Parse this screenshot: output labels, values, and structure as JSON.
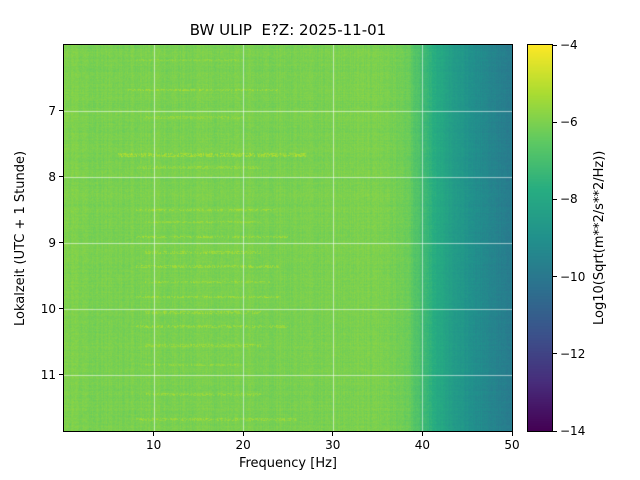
{
  "chart_data": {
    "type": "heatmap",
    "title": "BW ULIP  E?Z: 2025-11-01",
    "xlabel": "Frequency [Hz]",
    "ylabel": "Lokalzeit (UTC + 1 Stunde)",
    "x_range": [
      0,
      50
    ],
    "y_range": [
      6.0,
      11.85
    ],
    "x_ticks": [
      10,
      20,
      30,
      40,
      50
    ],
    "y_ticks": [
      7,
      8,
      9,
      10,
      11
    ],
    "grid": true,
    "colorbar": {
      "label": "Log10(Sqrt(m**2/s**2/Hz))",
      "ticks": [
        -4,
        -6,
        -8,
        -10,
        -12,
        -14
      ],
      "range": [
        -14,
        -4
      ],
      "colormap": "viridis"
    },
    "spectrum_profile": {
      "freq": [
        0,
        2,
        30,
        36,
        38.5,
        40,
        41.5,
        43,
        45,
        47.5,
        50
      ],
      "value": [
        -5.95,
        -6.05,
        -6.05,
        -6.0,
        -6.35,
        -7.1,
        -7.8,
        -8.35,
        -8.9,
        -9.45,
        -9.9
      ]
    },
    "noise_amplitude": 0.15,
    "column_noise": 0.12,
    "row_noise": 0.08,
    "bands": [
      {
        "time": 6.23,
        "f0": 8,
        "f1": 20,
        "boost": 0.45,
        "hw": 0.02
      },
      {
        "time": 6.68,
        "f0": 7,
        "f1": 24,
        "boost": 0.7,
        "hw": 0.02
      },
      {
        "time": 7.1,
        "f0": 9,
        "f1": 20,
        "boost": 0.5,
        "hw": 0.02
      },
      {
        "time": 7.67,
        "f0": 6,
        "f1": 27,
        "boost": 0.95,
        "hw": 0.03
      },
      {
        "time": 7.86,
        "f0": 8,
        "f1": 22,
        "boost": 0.55,
        "hw": 0.02
      },
      {
        "time": 8.5,
        "f0": 8,
        "f1": 24,
        "boost": 0.7,
        "hw": 0.02
      },
      {
        "time": 8.68,
        "f0": 9,
        "f1": 22,
        "boost": 0.6,
        "hw": 0.02
      },
      {
        "time": 8.91,
        "f0": 8,
        "f1": 25,
        "boost": 0.8,
        "hw": 0.02
      },
      {
        "time": 9.14,
        "f0": 9,
        "f1": 22,
        "boost": 0.7,
        "hw": 0.02
      },
      {
        "time": 9.36,
        "f0": 8,
        "f1": 24,
        "boost": 0.8,
        "hw": 0.02
      },
      {
        "time": 9.59,
        "f0": 9,
        "f1": 23,
        "boost": 0.7,
        "hw": 0.02
      },
      {
        "time": 9.82,
        "f0": 8,
        "f1": 24,
        "boost": 0.8,
        "hw": 0.02
      },
      {
        "time": 10.05,
        "f0": 9,
        "f1": 22,
        "boost": 0.7,
        "hw": 0.02
      },
      {
        "time": 10.27,
        "f0": 8,
        "f1": 25,
        "boost": 0.75,
        "hw": 0.02
      },
      {
        "time": 10.55,
        "f0": 9,
        "f1": 22,
        "boost": 0.65,
        "hw": 0.02
      },
      {
        "time": 10.85,
        "f0": 9,
        "f1": 20,
        "boost": 0.55,
        "hw": 0.02
      },
      {
        "time": 11.3,
        "f0": 9,
        "f1": 22,
        "boost": 0.6,
        "hw": 0.02
      },
      {
        "time": 11.68,
        "f0": 8,
        "f1": 26,
        "boost": 0.7,
        "hw": 0.02
      }
    ]
  }
}
